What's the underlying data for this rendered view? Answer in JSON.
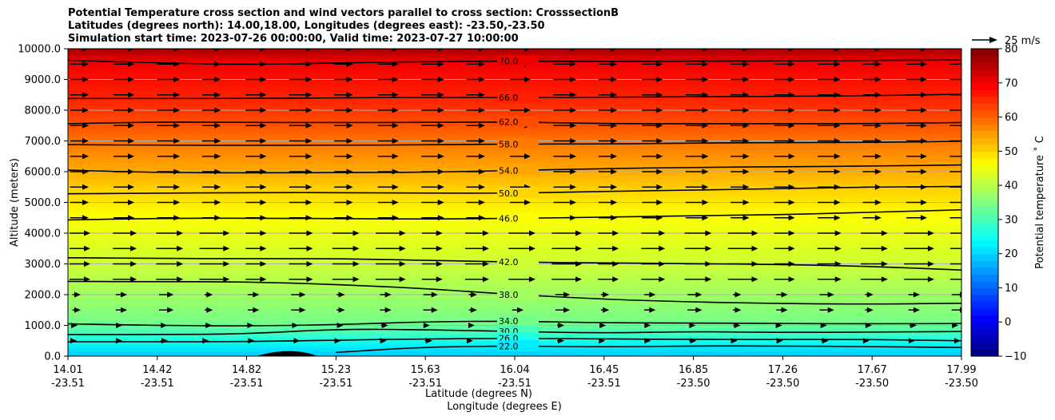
{
  "chart_data": {
    "type": "heatmap",
    "title_lines": [
      "Potential Temperature cross section and wind vectors parallel to cross section: CrosssectionB",
      "Latitudes (degrees north): 14.00,18.00, Longitudes (degrees east): -23.50,-23.50",
      "Simulation start time: 2023-07-26 00:00:00, Valid time: 2023-07-27 10:00:00"
    ],
    "ylabel": "Altitude (meters)",
    "xlabel_lat": "Latitude (degrees N)",
    "xlabel_lon": "Longitude (degrees E)",
    "ylim": [
      0,
      10000
    ],
    "y_ticks": [
      "0.0",
      "1000.0",
      "2000.0",
      "3000.0",
      "4000.0",
      "5000.0",
      "6000.0",
      "7000.0",
      "8000.0",
      "9000.0",
      "10000.0"
    ],
    "x_ticks": [
      {
        "lat": "14.01",
        "lon": "-23.51"
      },
      {
        "lat": "14.42",
        "lon": "-23.51"
      },
      {
        "lat": "14.82",
        "lon": "-23.51"
      },
      {
        "lat": "15.23",
        "lon": "-23.51"
      },
      {
        "lat": "15.63",
        "lon": "-23.51"
      },
      {
        "lat": "16.04",
        "lon": "-23.51"
      },
      {
        "lat": "16.45",
        "lon": "-23.51"
      },
      {
        "lat": "16.85",
        "lon": "-23.50"
      },
      {
        "lat": "17.26",
        "lon": "-23.50"
      },
      {
        "lat": "17.67",
        "lon": "-23.50"
      },
      {
        "lat": "17.99",
        "lon": "-23.50"
      }
    ],
    "colorbar": {
      "label": "Potential temperature ˚ C",
      "range": [
        -10,
        80
      ],
      "ticks": [
        "−10",
        "0",
        "10",
        "20",
        "30",
        "40",
        "50",
        "60",
        "70",
        "80"
      ],
      "colormap": "jet"
    },
    "contour_labels": [
      "70.0",
      "66.0",
      "62.0",
      "58.0",
      "54.0",
      "50.0",
      "46.0",
      "42.0",
      "38.0",
      "34.0",
      "30.0",
      "26.0",
      "22.0"
    ],
    "contours": [
      {
        "level": 70,
        "y": [
          9620,
          9540,
          9480,
          9540,
          9580,
          9600,
          9580,
          9600,
          9600,
          9620,
          9630
        ]
      },
      {
        "level": 66,
        "y": [
          8380,
          8380,
          8380,
          8400,
          8420,
          8410,
          8420,
          8440,
          8450,
          8470,
          8520
        ]
      },
      {
        "level": 62,
        "y": [
          7560,
          7620,
          7600,
          7600,
          7600,
          7620,
          7560,
          7560,
          7560,
          7560,
          7600
        ]
      },
      {
        "level": 58,
        "y": [
          6880,
          6860,
          6860,
          6860,
          6870,
          6900,
          6900,
          6930,
          6950,
          6950,
          6990
        ]
      },
      {
        "level": 54,
        "y": [
          6050,
          5970,
          5960,
          5970,
          5980,
          6040,
          6100,
          6140,
          6160,
          6180,
          6220
        ]
      },
      {
        "level": 50,
        "y": [
          5280,
          5300,
          5320,
          5320,
          5300,
          5300,
          5360,
          5400,
          5450,
          5500,
          5520
        ]
      },
      {
        "level": 46,
        "y": [
          4430,
          4480,
          4490,
          4470,
          4460,
          4480,
          4520,
          4570,
          4600,
          4680,
          4760
        ]
      },
      {
        "level": 42,
        "y": [
          3200,
          3180,
          3170,
          3170,
          3120,
          3060,
          3030,
          3010,
          2980,
          2920,
          2800
        ]
      },
      {
        "level": 38,
        "y": [
          2430,
          2420,
          2420,
          2330,
          2200,
          2000,
          1850,
          1760,
          1710,
          1690,
          1720
        ]
      },
      {
        "level": 34,
        "y": [
          1050,
          1000,
          980,
          1020,
          1120,
          1140,
          1080,
          1080,
          1060,
          1050,
          1060
        ]
      },
      {
        "level": 30,
        "y": [
          700,
          700,
          720,
          880,
          860,
          800,
          750,
          800,
          770,
          780,
          800
        ]
      },
      {
        "level": 26,
        "y": [
          470,
          470,
          470,
          520,
          560,
          580,
          560,
          540,
          540,
          540,
          500
        ]
      },
      {
        "level": 22,
        "y": [
          null,
          null,
          null,
          120,
          300,
          330,
          300,
          330,
          330,
          310,
          280
        ]
      }
    ],
    "terrain": {
      "x_lat": [
        14.85,
        14.95,
        15.05,
        15.12
      ],
      "y": [
        0,
        180,
        150,
        0
      ]
    },
    "wind_reference": {
      "label": "25 m/s",
      "value": 25
    },
    "wind_levels_m": [
      500,
      1000,
      1500,
      2000,
      2500,
      3000,
      3500,
      4000,
      4500,
      5000,
      5500,
      6000,
      6500,
      7000,
      7500,
      8000,
      8500,
      9000,
      9500,
      10000
    ],
    "grid": true
  },
  "colors": {
    "contour": "#000000",
    "grid": "#b0b0b0",
    "terrain": "#000000"
  }
}
